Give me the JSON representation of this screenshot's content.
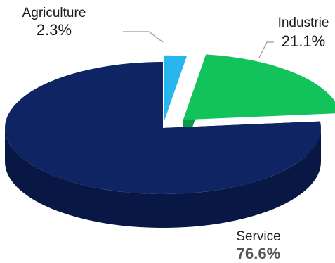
{
  "chart_data": {
    "type": "pie",
    "style": "3d-exploded",
    "title": "",
    "categories": [
      "Agriculture",
      "Industrie",
      "Service"
    ],
    "values": [
      2.3,
      21.1,
      76.6
    ],
    "value_labels": [
      "2.3%",
      "21.1%",
      "76.6%"
    ],
    "colors": [
      "#29b6ee",
      "#12c25a",
      "#0f2462"
    ],
    "side_colors": [
      "#0b1a3c",
      "#0a9b45",
      "#081743"
    ],
    "legend": "none"
  }
}
